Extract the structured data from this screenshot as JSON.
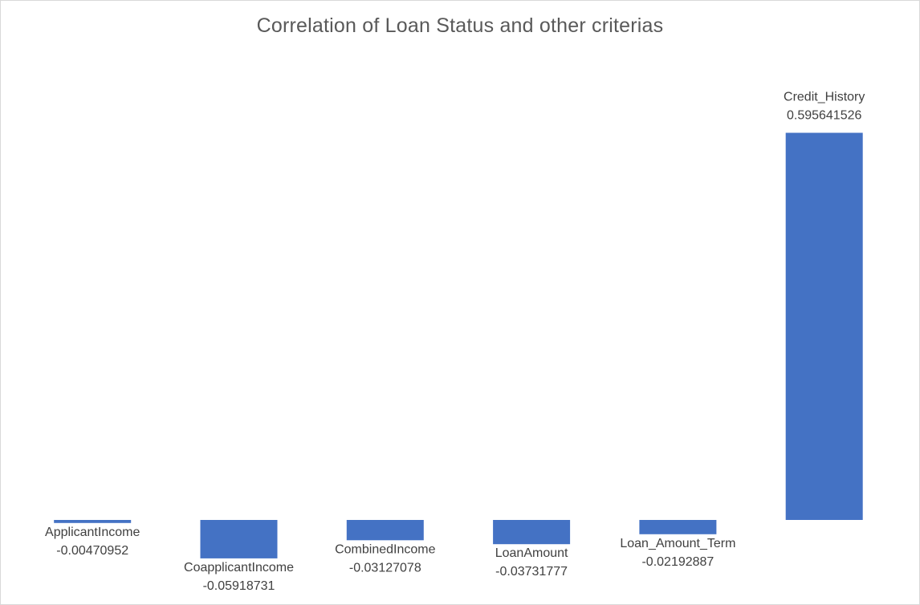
{
  "chart_data": {
    "type": "bar",
    "title": "Correlation of Loan Status and other criterias",
    "xlabel": "",
    "ylabel": "",
    "categories": [
      "ApplicantIncome",
      "CoapplicantIncome",
      "CombinedIncome",
      "LoanAmount",
      "Loan_Amount_Term",
      "Credit_History"
    ],
    "values": [
      -0.00470952,
      -0.05918731,
      -0.03127078,
      -0.03731777,
      -0.02192887,
      0.595641526
    ],
    "value_labels": [
      "-0.00470952",
      "-0.05918731",
      "-0.03127078",
      "-0.03731777",
      "-0.02192887",
      "0.595641526"
    ],
    "bar_color": "#4472C4",
    "grid": false,
    "legend": "none",
    "axes_visible": false
  }
}
